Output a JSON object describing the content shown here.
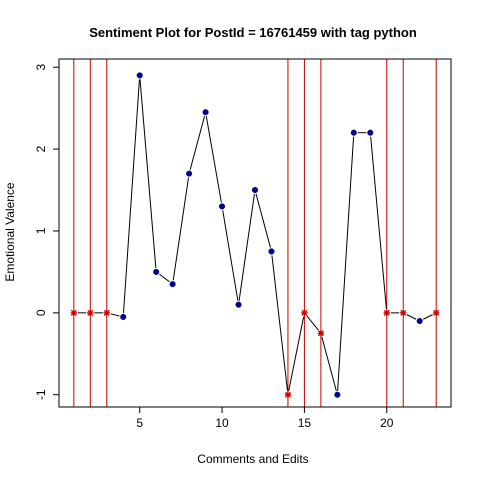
{
  "chart_data": {
    "type": "line",
    "title": "Sentiment Plot for PostId =  16761459  with tag  python",
    "xlabel": "Comments and Edits",
    "ylabel": "Emotional Valence",
    "xlim": [
      0.1,
      23.9
    ],
    "ylim": [
      -1.15,
      3.1
    ],
    "x_ticks": [
      5,
      10,
      15,
      20
    ],
    "y_ticks": [
      -1,
      0,
      1,
      2,
      3
    ],
    "x_tick_labels": [
      "5",
      "10",
      "15",
      "20"
    ],
    "y_tick_labels": [
      "-1",
      "0",
      "1",
      "2",
      "3"
    ],
    "grid": false,
    "legend": "none",
    "x": [
      1,
      2,
      3,
      4,
      5,
      6,
      7,
      8,
      9,
      10,
      11,
      12,
      13,
      14,
      15,
      16,
      17,
      18,
      19,
      20,
      21,
      22,
      23
    ],
    "values": [
      0,
      0,
      0,
      -0.05,
      2.9,
      0.5,
      0.35,
      1.7,
      2.45,
      1.3,
      0.1,
      1.5,
      0.75,
      -1.0,
      0,
      -0.25,
      -1.0,
      2.2,
      2.2,
      0,
      0,
      -0.1,
      0
    ],
    "edit_positions": [
      1,
      2,
      3,
      14,
      15,
      16,
      20,
      21,
      23
    ],
    "colors": {
      "line": "#000000",
      "comment_marker": "#00008B",
      "edit_marker": "#CC0000",
      "edit_line": "#CC0000",
      "axis": "#000000"
    }
  }
}
